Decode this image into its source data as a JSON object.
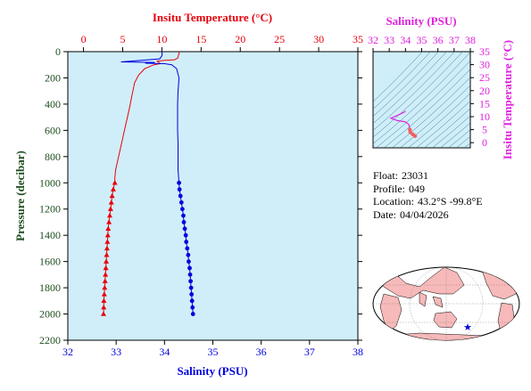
{
  "colors": {
    "temperature": "#e8000b",
    "salinity": "#0000dd",
    "ts_magenta": "#e020e0",
    "pressure_axis": "#1f4d1f",
    "plot_bg": "#d0eef9",
    "land": "#f7b9b9",
    "ocean": "#ffffff"
  },
  "chart_data": [
    {
      "type": "line",
      "title": "",
      "grid": false,
      "y_axis": {
        "label": "Pressure (decibar)",
        "range": [
          2200,
          0
        ],
        "inverted": true,
        "ticks": [
          0,
          200,
          400,
          600,
          800,
          1000,
          1200,
          1400,
          1600,
          1800,
          2000,
          2200
        ]
      },
      "x_axis_top": {
        "label": "Insitu Temperature (°C)",
        "range": [
          -2,
          35
        ],
        "ticks": [
          0,
          5,
          10,
          15,
          20,
          25,
          30,
          35
        ]
      },
      "x_axis_bottom": {
        "label": "Salinity (PSU)",
        "range": [
          32,
          38
        ],
        "ticks": [
          32,
          33,
          34,
          35,
          36,
          37,
          38
        ]
      },
      "series": [
        {
          "axis": "top",
          "marker": "triangle",
          "upper_profile": [
            [
              12.2,
              0
            ],
            [
              12.2,
              15
            ],
            [
              12.1,
              30
            ],
            [
              12.0,
              50
            ],
            [
              11.6,
              62
            ],
            [
              10.4,
              66
            ],
            [
              9.4,
              72
            ],
            [
              9.8,
              92
            ],
            [
              9.0,
              100
            ],
            [
              7.8,
              130
            ],
            [
              7.0,
              180
            ],
            [
              6.5,
              240
            ],
            [
              6.3,
              300
            ],
            [
              6.1,
              360
            ],
            [
              5.9,
              420
            ],
            [
              5.6,
              500
            ],
            [
              5.3,
              580
            ],
            [
              5.0,
              660
            ],
            [
              4.7,
              740
            ],
            [
              4.4,
              820
            ],
            [
              4.1,
              900
            ],
            [
              4.0,
              960
            ],
            [
              4.0,
              1000
            ]
          ],
          "points": [
            [
              4.0,
              1000
            ],
            [
              3.8,
              1050
            ],
            [
              3.65,
              1100
            ],
            [
              3.55,
              1150
            ],
            [
              3.45,
              1200
            ],
            [
              3.35,
              1250
            ],
            [
              3.25,
              1300
            ],
            [
              3.15,
              1350
            ],
            [
              3.1,
              1400
            ],
            [
              3.05,
              1450
            ],
            [
              3.0,
              1500
            ],
            [
              2.95,
              1550
            ],
            [
              2.9,
              1600
            ],
            [
              2.85,
              1650
            ],
            [
              2.8,
              1700
            ],
            [
              2.75,
              1750
            ],
            [
              2.7,
              1800
            ],
            [
              2.65,
              1850
            ],
            [
              2.6,
              1900
            ],
            [
              2.58,
              1950
            ],
            [
              2.55,
              2000
            ]
          ]
        },
        {
          "axis": "bottom",
          "marker": "circle",
          "upper_profile": [
            [
              33.95,
              0
            ],
            [
              33.95,
              30
            ],
            [
              33.9,
              55
            ],
            [
              33.4,
              70
            ],
            [
              33.1,
              78
            ],
            [
              33.8,
              82
            ],
            [
              33.6,
              88
            ],
            [
              34.0,
              92
            ],
            [
              34.15,
              100
            ],
            [
              34.25,
              130
            ],
            [
              34.3,
              200
            ],
            [
              34.28,
              300
            ],
            [
              34.27,
              400
            ],
            [
              34.27,
              500
            ],
            [
              34.27,
              600
            ],
            [
              34.28,
              700
            ],
            [
              34.28,
              800
            ],
            [
              34.28,
              900
            ],
            [
              34.3,
              1000
            ]
          ],
          "points": [
            [
              34.3,
              1000
            ],
            [
              34.31,
              1050
            ],
            [
              34.33,
              1100
            ],
            [
              34.35,
              1150
            ],
            [
              34.37,
              1200
            ],
            [
              34.39,
              1250
            ],
            [
              34.4,
              1300
            ],
            [
              34.42,
              1350
            ],
            [
              34.44,
              1400
            ],
            [
              34.45,
              1450
            ],
            [
              34.47,
              1500
            ],
            [
              34.49,
              1550
            ],
            [
              34.5,
              1600
            ],
            [
              34.52,
              1650
            ],
            [
              34.53,
              1700
            ],
            [
              34.54,
              1750
            ],
            [
              34.55,
              1800
            ],
            [
              34.56,
              1850
            ],
            [
              34.57,
              1900
            ],
            [
              34.58,
              1950
            ],
            [
              34.59,
              2000
            ]
          ]
        }
      ]
    },
    {
      "type": "line",
      "title": "",
      "x_axis": {
        "label": "Salinity (PSU)",
        "range": [
          32,
          38
        ],
        "ticks": [
          32,
          33,
          34,
          35,
          36,
          37,
          38
        ]
      },
      "y_axis": {
        "label": "Insitu Temperature (°C)",
        "range": [
          -2,
          35
        ],
        "ticks": [
          0,
          5,
          10,
          15,
          20,
          25,
          30,
          35
        ]
      },
      "series": [
        {
          "points": [
            [
              34.0,
              12.2
            ],
            [
              33.95,
              11.8
            ],
            [
              33.5,
              10.5
            ],
            [
              33.1,
              9.4
            ],
            [
              33.5,
              8.5
            ],
            [
              34.0,
              8.0
            ],
            [
              34.2,
              7.0
            ],
            [
              34.25,
              6.0
            ],
            [
              34.27,
              5.0
            ],
            [
              34.3,
              4.0
            ],
            [
              34.45,
              3.2
            ],
            [
              34.59,
              2.55
            ]
          ]
        }
      ]
    }
  ],
  "float_info": [
    {
      "label": "Float:",
      "value": "23031"
    },
    {
      "label": "Profile:",
      "value": "049"
    },
    {
      "label": "Location:",
      "value": "43.2°S  -99.8°E"
    },
    {
      "label": "Date:",
      "value": "04/04/2026"
    }
  ],
  "map": {
    "marker": "star",
    "lat": -43.2,
    "lon": -99.8
  }
}
